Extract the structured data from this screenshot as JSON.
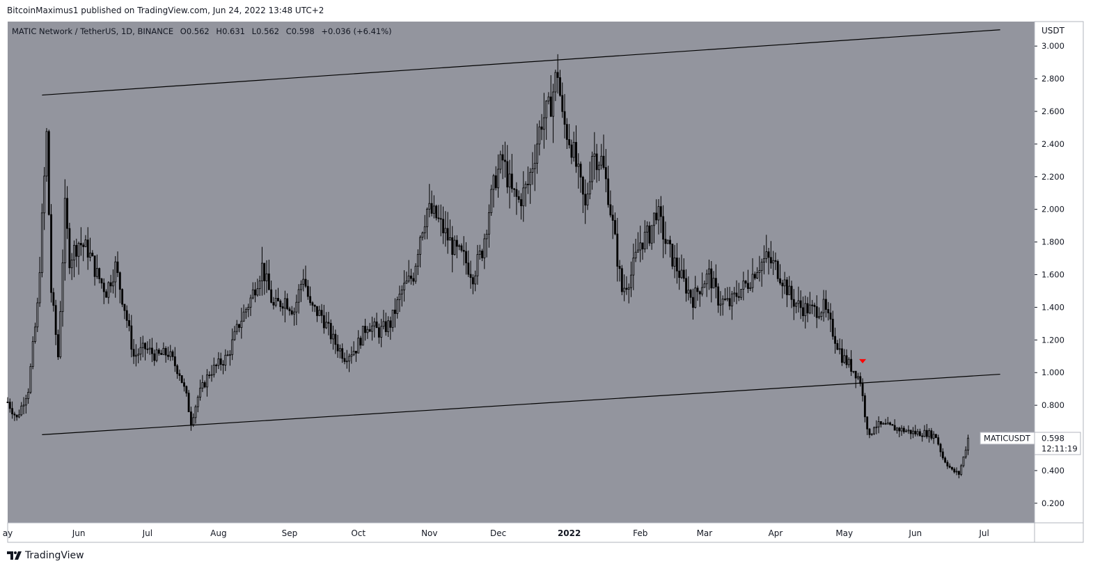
{
  "published": "BitcoinMaximus1 published on TradingView.com, Jun 24, 2022 13:48 UTC+2",
  "footer_brand": "TradingView",
  "colors": {
    "chart_bg": "#93959e",
    "axis_bg": "#ffffff",
    "candle": "#000000",
    "marker": "#ff0000"
  },
  "chart_data": {
    "type": "candlestick",
    "title": "MATIC Network / TetherUS, 1D, BINANCE",
    "ohlc_labels": {
      "o_label": "O",
      "o": "0.562",
      "h_label": "H",
      "h": "0.631",
      "l_label": "L",
      "l": "0.562",
      "c_label": "C",
      "c": "0.598",
      "change": "+0.036 (+6.41%)"
    },
    "y_unit": "USDT",
    "ylim": [
      0.08,
      3.15
    ],
    "yticks": [
      "3.000",
      "2.800",
      "2.600",
      "2.400",
      "2.200",
      "2.000",
      "1.800",
      "1.600",
      "1.400",
      "1.200",
      "1.000",
      "0.800",
      "0.600",
      "0.400",
      "0.200"
    ],
    "xlim": [
      "2021-05-01",
      "2022-07-23"
    ],
    "xticks": [
      {
        "label": "ay",
        "date": "2021-05-01"
      },
      {
        "label": "Jun",
        "date": "2021-06-01"
      },
      {
        "label": "Jul",
        "date": "2021-07-01"
      },
      {
        "label": "Aug",
        "date": "2021-08-01"
      },
      {
        "label": "Sep",
        "date": "2021-09-01"
      },
      {
        "label": "Oct",
        "date": "2021-10-01"
      },
      {
        "label": "Nov",
        "date": "2021-11-01"
      },
      {
        "label": "Dec",
        "date": "2021-12-01"
      },
      {
        "label": "2022",
        "date": "2022-01-01"
      },
      {
        "label": "Feb",
        "date": "2022-02-01"
      },
      {
        "label": "Mar",
        "date": "2022-03-01"
      },
      {
        "label": "Apr",
        "date": "2022-04-01"
      },
      {
        "label": "May",
        "date": "2022-05-01"
      },
      {
        "label": "Jun",
        "date": "2022-06-01"
      },
      {
        "label": "Jul",
        "date": "2022-07-01"
      }
    ],
    "price_path": [
      [
        "2021-05-01",
        0.82
      ],
      [
        "2021-05-05",
        0.72
      ],
      [
        "2021-05-10",
        0.9
      ],
      [
        "2021-05-14",
        1.4
      ],
      [
        "2021-05-18",
        2.45
      ],
      [
        "2021-05-20",
        1.5
      ],
      [
        "2021-05-23",
        1.1
      ],
      [
        "2021-05-26",
        2.0
      ],
      [
        "2021-05-28",
        1.7
      ],
      [
        "2021-06-01",
        1.8
      ],
      [
        "2021-06-05",
        1.75
      ],
      [
        "2021-06-09",
        1.6
      ],
      [
        "2021-06-13",
        1.5
      ],
      [
        "2021-06-17",
        1.65
      ],
      [
        "2021-06-21",
        1.4
      ],
      [
        "2021-06-25",
        1.1
      ],
      [
        "2021-06-30",
        1.15
      ],
      [
        "2021-07-05",
        1.1
      ],
      [
        "2021-07-10",
        1.12
      ],
      [
        "2021-07-15",
        1.0
      ],
      [
        "2021-07-18",
        0.85
      ],
      [
        "2021-07-20",
        0.7
      ],
      [
        "2021-07-23",
        0.85
      ],
      [
        "2021-07-28",
        1.0
      ],
      [
        "2021-08-05",
        1.1
      ],
      [
        "2021-08-10",
        1.3
      ],
      [
        "2021-08-15",
        1.45
      ],
      [
        "2021-08-20",
        1.65
      ],
      [
        "2021-08-25",
        1.4
      ],
      [
        "2021-08-30",
        1.45
      ],
      [
        "2021-09-03",
        1.38
      ],
      [
        "2021-09-07",
        1.6
      ],
      [
        "2021-09-10",
        1.4
      ],
      [
        "2021-09-15",
        1.35
      ],
      [
        "2021-09-20",
        1.2
      ],
      [
        "2021-09-25",
        1.1
      ],
      [
        "2021-09-30",
        1.15
      ],
      [
        "2021-10-05",
        1.3
      ],
      [
        "2021-10-10",
        1.25
      ],
      [
        "2021-10-15",
        1.3
      ],
      [
        "2021-10-20",
        1.5
      ],
      [
        "2021-10-25",
        1.6
      ],
      [
        "2021-10-28",
        1.85
      ],
      [
        "2021-10-31",
        2.0
      ],
      [
        "2021-11-04",
        1.95
      ],
      [
        "2021-11-08",
        1.85
      ],
      [
        "2021-11-12",
        1.75
      ],
      [
        "2021-11-16",
        1.7
      ],
      [
        "2021-11-20",
        1.6
      ],
      [
        "2021-11-24",
        1.75
      ],
      [
        "2021-11-27",
        2.0
      ],
      [
        "2021-11-30",
        2.2
      ],
      [
        "2021-12-03",
        2.3
      ],
      [
        "2021-12-07",
        2.1
      ],
      [
        "2021-12-10",
        2.05
      ],
      [
        "2021-12-14",
        2.15
      ],
      [
        "2021-12-17",
        2.35
      ],
      [
        "2021-12-20",
        2.55
      ],
      [
        "2021-12-23",
        2.6
      ],
      [
        "2021-12-27",
        2.85
      ],
      [
        "2021-12-29",
        2.55
      ],
      [
        "2022-01-02",
        2.4
      ],
      [
        "2022-01-05",
        2.2
      ],
      [
        "2022-01-08",
        2.0
      ],
      [
        "2022-01-11",
        2.35
      ],
      [
        "2022-01-15",
        2.3
      ],
      [
        "2022-01-18",
        2.1
      ],
      [
        "2022-01-21",
        1.8
      ],
      [
        "2022-01-24",
        1.5
      ],
      [
        "2022-01-28",
        1.6
      ],
      [
        "2022-02-01",
        1.8
      ],
      [
        "2022-02-05",
        1.85
      ],
      [
        "2022-02-08",
        2.0
      ],
      [
        "2022-02-12",
        1.8
      ],
      [
        "2022-02-15",
        1.7
      ],
      [
        "2022-02-20",
        1.55
      ],
      [
        "2022-02-24",
        1.45
      ],
      [
        "2022-02-28",
        1.55
      ],
      [
        "2022-03-03",
        1.6
      ],
      [
        "2022-03-07",
        1.45
      ],
      [
        "2022-03-12",
        1.42
      ],
      [
        "2022-03-16",
        1.5
      ],
      [
        "2022-03-20",
        1.55
      ],
      [
        "2022-03-24",
        1.65
      ],
      [
        "2022-03-28",
        1.7
      ],
      [
        "2022-04-01",
        1.65
      ],
      [
        "2022-04-05",
        1.55
      ],
      [
        "2022-04-08",
        1.45
      ],
      [
        "2022-04-12",
        1.4
      ],
      [
        "2022-04-18",
        1.38
      ],
      [
        "2022-04-22",
        1.4
      ],
      [
        "2022-04-26",
        1.25
      ],
      [
        "2022-04-30",
        1.1
      ],
      [
        "2022-05-03",
        1.05
      ],
      [
        "2022-05-06",
        1.0
      ],
      [
        "2022-05-08",
        0.95
      ],
      [
        "2022-05-10",
        0.75
      ],
      [
        "2022-05-12",
        0.6
      ],
      [
        "2022-05-14",
        0.68
      ],
      [
        "2022-05-20",
        0.67
      ],
      [
        "2022-05-26",
        0.65
      ],
      [
        "2022-06-01",
        0.63
      ],
      [
        "2022-06-06",
        0.63
      ],
      [
        "2022-06-10",
        0.61
      ],
      [
        "2022-06-13",
        0.48
      ],
      [
        "2022-06-17",
        0.4
      ],
      [
        "2022-06-20",
        0.38
      ],
      [
        "2022-06-22",
        0.48
      ],
      [
        "2022-06-24",
        0.598
      ]
    ],
    "channel_lines": [
      {
        "x1": "2021-05-16",
        "y1": 2.7,
        "x2": "2022-07-08",
        "y2": 3.1
      },
      {
        "x1": "2021-05-16",
        "y1": 0.62,
        "x2": "2022-07-08",
        "y2": 0.99
      }
    ],
    "marker": {
      "date": "2022-05-09",
      "price": 1.07,
      "shape": "down-triangle"
    },
    "last_price_label": {
      "symbol": "MATICUSDT",
      "price": "0.598",
      "countdown": "12:11:19",
      "value": 0.598
    }
  }
}
